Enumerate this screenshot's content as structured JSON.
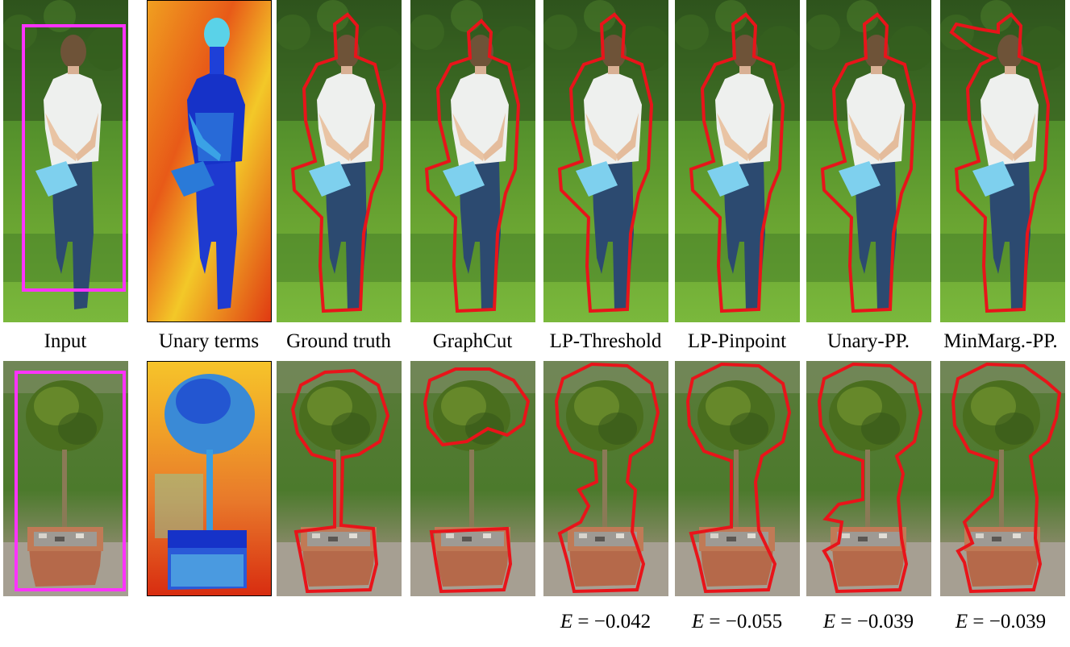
{
  "columns": [
    {
      "label": "Input"
    },
    {
      "label": "Unary terms"
    },
    {
      "label": "Ground truth"
    },
    {
      "label": "GraphCut"
    },
    {
      "label": "LP-Threshold",
      "energy": "−0.042"
    },
    {
      "label": "LP-Pinpoint",
      "energy": "−0.055"
    },
    {
      "label": "Unary-PP.",
      "energy": "−0.039"
    },
    {
      "label": "MinMarg.-PP.",
      "energy": "−0.039"
    }
  ],
  "energy_symbol": "E",
  "colors": {
    "bounding_box": "#ff33ff",
    "segmentation_contour": "#e8141a",
    "grass": "#5f9a2c",
    "foliage": "#3e6a1e",
    "shirt": "#eef0ee",
    "jeans": "#2c4a70",
    "pot": "#b5694a",
    "heatmap_bg": "#e8541a",
    "heatmap_fg": "#1632c8"
  }
}
